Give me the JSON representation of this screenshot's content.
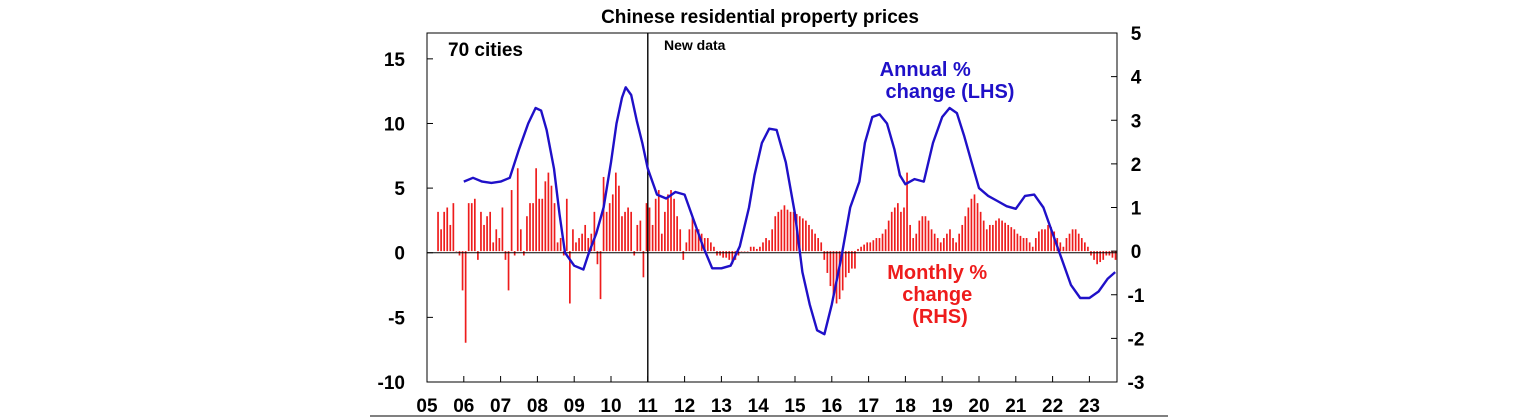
{
  "chart_data": {
    "type": "bar+line",
    "title": "Chinese residential property prices",
    "panel_label": "70 cities",
    "annotation": "New data",
    "annotation_x": 2011.0,
    "xlim": [
      2005.0,
      2023.75
    ],
    "x_ticks": [
      "05",
      "06",
      "07",
      "08",
      "09",
      "10",
      "11",
      "12",
      "13",
      "14",
      "15",
      "16",
      "17",
      "18",
      "19",
      "20",
      "21",
      "22",
      "23"
    ],
    "y_left": {
      "lim": [
        -10,
        17
      ],
      "ticks": [
        -10,
        -5,
        0,
        5,
        10,
        15
      ]
    },
    "y_right": {
      "lim": [
        -3,
        5
      ],
      "ticks": [
        -3,
        -2,
        -1,
        0,
        1,
        2,
        3,
        4,
        5
      ]
    },
    "colors": {
      "annual": "#1f10c8",
      "monthly": "#ee1c1c",
      "axis": "#000000"
    },
    "series": [
      {
        "name": "Annual % change (LHS)",
        "label_lines": [
          "Annual %",
          "change (LHS)"
        ],
        "axis": "left",
        "style": "line",
        "x": [
          2006.0,
          2006.25,
          2006.5,
          2006.75,
          2007.0,
          2007.25,
          2007.5,
          2007.75,
          2007.95,
          2008.1,
          2008.25,
          2008.45,
          2008.6,
          2008.75,
          2009.0,
          2009.25,
          2009.4,
          2009.6,
          2009.8,
          2010.0,
          2010.15,
          2010.3,
          2010.4,
          2010.55,
          2010.7,
          2010.85,
          2011.0,
          2011.25,
          2011.5,
          2011.75,
          2012.0,
          2012.25,
          2012.5,
          2012.75,
          2013.0,
          2013.25,
          2013.5,
          2013.75,
          2013.9,
          2014.1,
          2014.3,
          2014.5,
          2014.75,
          2015.0,
          2015.2,
          2015.4,
          2015.6,
          2015.8,
          2016.0,
          2016.25,
          2016.5,
          2016.75,
          2016.9,
          2017.1,
          2017.3,
          2017.5,
          2017.7,
          2017.85,
          2018.0,
          2018.25,
          2018.5,
          2018.75,
          2019.0,
          2019.2,
          2019.4,
          2019.6,
          2019.8,
          2020.0,
          2020.25,
          2020.5,
          2020.75,
          2021.0,
          2021.25,
          2021.5,
          2021.75,
          2022.0,
          2022.25,
          2022.5,
          2022.75,
          2023.0,
          2023.25,
          2023.5,
          2023.7
        ],
        "y": [
          5.5,
          5.8,
          5.5,
          5.4,
          5.5,
          5.8,
          8.0,
          10.0,
          11.2,
          11.0,
          9.5,
          6.5,
          3.0,
          0.0,
          -1.0,
          -1.3,
          0.0,
          1.5,
          3.5,
          7.0,
          10.0,
          12.0,
          12.8,
          12.2,
          10.2,
          8.5,
          6.5,
          4.5,
          4.2,
          4.7,
          4.5,
          2.5,
          0.5,
          -1.2,
          -1.2,
          -1.0,
          0.5,
          3.5,
          6.0,
          8.5,
          9.6,
          9.5,
          7.0,
          3.0,
          -1.5,
          -4.0,
          -6.0,
          -6.3,
          -4.0,
          -0.5,
          3.5,
          5.5,
          8.5,
          10.5,
          10.7,
          10.0,
          8.0,
          6.0,
          5.3,
          5.7,
          5.5,
          8.5,
          10.5,
          11.2,
          10.8,
          9.0,
          7.0,
          5.0,
          4.4,
          4.0,
          3.6,
          3.4,
          4.4,
          4.5,
          3.5,
          1.5,
          -0.5,
          -2.5,
          -3.5,
          -3.5,
          -3.0,
          -2.0,
          -1.5
        ]
      },
      {
        "name": "Monthly % change (RHS)",
        "label_lines": [
          "Monthly %",
          "change",
          "(RHS)"
        ],
        "axis": "right",
        "style": "bar",
        "x_start": 2005.3,
        "step": 0.0833,
        "values": [
          0.9,
          0.5,
          0.9,
          1.0,
          0.6,
          1.1,
          0,
          -0.1,
          -0.9,
          -2.1,
          1.1,
          1.1,
          1.2,
          -0.2,
          0.9,
          0.6,
          0.8,
          0.9,
          0.2,
          0.5,
          0.3,
          1.0,
          -0.2,
          -0.9,
          1.4,
          -0.1,
          1.9,
          0.5,
          -0.1,
          0.8,
          1.1,
          1.1,
          1.9,
          1.2,
          1.2,
          1.6,
          1.8,
          1.5,
          1.1,
          0.2,
          0.3,
          -0.1,
          1.2,
          -1.2,
          0.5,
          0.2,
          0.3,
          0.4,
          0.6,
          0.3,
          0.4,
          0.9,
          -0.3,
          -1.1,
          1.7,
          0.9,
          1.1,
          1.3,
          1.8,
          1.5,
          0.8,
          0.9,
          1.0,
          0.9,
          -0.1,
          0.6,
          0.7,
          -0.6,
          1.1,
          1.0,
          0.6,
          1.2,
          1.4,
          0.4,
          0.9,
          1.3,
          1.4,
          1.2,
          0.8,
          0.5,
          -0.2,
          0.2,
          0.5,
          0.8,
          0.5,
          0.5,
          0.4,
          0.3,
          0.3,
          0.2,
          0.1,
          -0.1,
          -0.1,
          -0.15,
          -0.15,
          -0.2,
          -0.3,
          -0.2,
          -0.1,
          0.0,
          0.0,
          0.0,
          0.1,
          0.1,
          0.05,
          0.1,
          0.2,
          0.3,
          0.25,
          0.5,
          0.8,
          0.9,
          0.95,
          1.05,
          0.95,
          0.9,
          0.9,
          0.85,
          0.8,
          0.75,
          0.7,
          0.6,
          0.5,
          0.4,
          0.3,
          0.2,
          -0.2,
          -0.5,
          -0.8,
          -1.0,
          -1.2,
          -1.1,
          -0.9,
          -0.6,
          -0.5,
          -0.4,
          -0.4,
          0.05,
          0.1,
          0.15,
          0.2,
          0.2,
          0.25,
          0.3,
          0.3,
          0.4,
          0.5,
          0.7,
          0.9,
          1.0,
          1.1,
          0.9,
          1.0,
          1.8,
          0.6,
          0.3,
          0.4,
          0.7,
          0.8,
          0.8,
          0.7,
          0.5,
          0.4,
          0.3,
          0.2,
          0.3,
          0.4,
          0.5,
          0.3,
          0.2,
          0.4,
          0.6,
          0.8,
          1.0,
          1.2,
          1.3,
          1.1,
          0.9,
          0.7,
          0.5,
          0.6,
          0.6,
          0.7,
          0.75,
          0.7,
          0.65,
          0.6,
          0.55,
          0.5,
          0.4,
          0.35,
          0.3,
          0.3,
          0.2,
          0.1,
          0.3,
          0.45,
          0.5,
          0.5,
          0.6,
          0.55,
          0.45,
          0.3,
          0.2,
          0.1,
          0.3,
          0.4,
          0.5,
          0.5,
          0.4,
          0.3,
          0.2,
          0.1,
          -0.1,
          -0.2,
          -0.3,
          -0.25,
          -0.2,
          -0.1,
          -0.1,
          -0.15,
          -0.2,
          -0.25,
          -0.3,
          -0.35,
          -0.3,
          -0.2,
          0.1,
          0.35,
          0.45,
          0.35,
          0.15,
          -0.05,
          -0.1,
          -0.2
        ]
      }
    ]
  }
}
